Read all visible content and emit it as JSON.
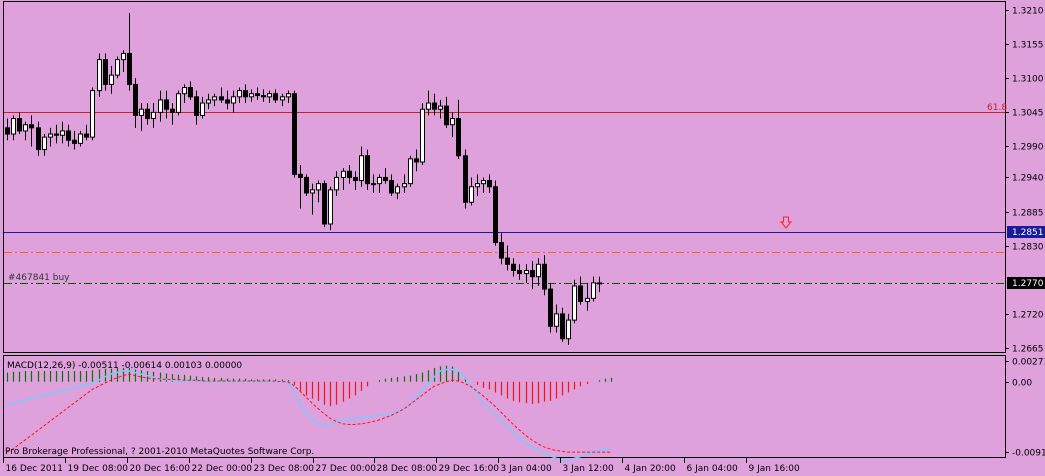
{
  "colors": {
    "background": "#dea1dc",
    "axis": "#000000",
    "level_618": "#cc2020",
    "blue_line": "#1a1a9a",
    "orange_dash": "#ff5a1a",
    "order_line": "#006000",
    "macd_pos": "#007700",
    "macd_neg": "#ff1010",
    "macd_signal": "#ff1010",
    "macd_main": "#7ec8ff",
    "arrow": "#ff2020"
  },
  "price_panel": {
    "label_618": "61.8",
    "order_label": "#467841 buy",
    "blue_level_label": "1.2851",
    "order_level_label": "1.2770",
    "price_ticks": [
      "1.3210",
      "1.3155",
      "1.3100",
      "1.3045",
      "1.2990",
      "1.2940",
      "1.2885",
      "1.2830",
      "1.2720",
      "1.2665"
    ]
  },
  "macd_panel": {
    "title": "MACD(12,26,9) -0.00511 -0.00614 0.00103 0.00000",
    "ticks": [
      "0.00271",
      "0.00",
      "-0.00919"
    ]
  },
  "copyright": "Pro Brokerage Professional, ? 2001-2010 MetaQuotes Software Corp.",
  "time_axis": [
    "16 Dec 2011",
    "19 Dec 08:00",
    "20 Dec 16:00",
    "22 Dec 00:00",
    "23 Dec 08:00",
    "27 Dec 00:00",
    "28 Dec 08:00",
    "29 Dec 16:00",
    "3 Jan 04:00",
    "3 Jan 12:00",
    "4 Jan 20:00",
    "6 Jan 04:00",
    "9 Jan 16:00"
  ],
  "chart_data": {
    "type": "candlestick",
    "symbol_timeframe": "H4",
    "price_range": [
      1.2655,
      1.3225
    ],
    "levels": [
      {
        "label": "61.8",
        "price": 1.3042
      },
      {
        "label": "1.2851",
        "price": 1.2851
      },
      {
        "label": "",
        "price": 1.2818
      },
      {
        "label": "1.2770",
        "price": 1.277
      }
    ],
    "candles": [
      [
        1.302,
        1.3035,
        1.3,
        1.301
      ],
      [
        1.301,
        1.304,
        1.3,
        1.3035
      ],
      [
        1.3035,
        1.3045,
        1.301,
        1.3015
      ],
      [
        1.3015,
        1.303,
        1.3,
        1.3025
      ],
      [
        1.3025,
        1.304,
        1.299,
        1.302
      ],
      [
        1.302,
        1.303,
        1.2975,
        1.2985
      ],
      [
        1.2985,
        1.301,
        1.2975,
        1.3005
      ],
      [
        1.3005,
        1.302,
        1.299,
        1.301
      ],
      [
        1.301,
        1.3025,
        1.2995,
        1.3008
      ],
      [
        1.3008,
        1.303,
        1.2995,
        1.3015
      ],
      [
        1.3015,
        1.3025,
        1.299,
        1.3
      ],
      [
        1.3,
        1.3015,
        1.2985,
        1.2995
      ],
      [
        1.2995,
        1.3015,
        1.299,
        1.301
      ],
      [
        1.301,
        1.3025,
        1.3,
        1.3005
      ],
      [
        1.3005,
        1.3085,
        1.3,
        1.308
      ],
      [
        1.308,
        1.314,
        1.307,
        1.313
      ],
      [
        1.313,
        1.314,
        1.308,
        1.309
      ],
      [
        1.309,
        1.312,
        1.3075,
        1.3105
      ],
      [
        1.3105,
        1.3135,
        1.31,
        1.313
      ],
      [
        1.313,
        1.3145,
        1.311,
        1.314
      ],
      [
        1.314,
        1.3205,
        1.308,
        1.309
      ],
      [
        1.309,
        1.31,
        1.302,
        1.304
      ],
      [
        1.304,
        1.306,
        1.3015,
        1.305
      ],
      [
        1.305,
        1.306,
        1.3025,
        1.3035
      ],
      [
        1.3035,
        1.306,
        1.302,
        1.3045
      ],
      [
        1.3045,
        1.308,
        1.303,
        1.3065
      ],
      [
        1.3065,
        1.308,
        1.3035,
        1.305
      ],
      [
        1.305,
        1.306,
        1.3025,
        1.3045
      ],
      [
        1.3045,
        1.308,
        1.304,
        1.3075
      ],
      [
        1.3075,
        1.309,
        1.306,
        1.3085
      ],
      [
        1.3085,
        1.3095,
        1.3065,
        1.307
      ],
      [
        1.307,
        1.308,
        1.3025,
        1.304
      ],
      [
        1.304,
        1.307,
        1.3035,
        1.306
      ],
      [
        1.306,
        1.3075,
        1.305,
        1.3065
      ],
      [
        1.3065,
        1.3075,
        1.3055,
        1.307
      ],
      [
        1.307,
        1.3085,
        1.306,
        1.3065
      ],
      [
        1.3065,
        1.308,
        1.305,
        1.306
      ],
      [
        1.306,
        1.308,
        1.3045,
        1.307
      ],
      [
        1.307,
        1.3085,
        1.306,
        1.308
      ],
      [
        1.308,
        1.309,
        1.306,
        1.307
      ],
      [
        1.307,
        1.3082,
        1.3062,
        1.3075
      ],
      [
        1.3075,
        1.3085,
        1.3065,
        1.3072
      ],
      [
        1.3072,
        1.3082,
        1.3062,
        1.307
      ],
      [
        1.307,
        1.308,
        1.306,
        1.3075
      ],
      [
        1.3075,
        1.3082,
        1.306,
        1.3065
      ],
      [
        1.3065,
        1.3075,
        1.3055,
        1.307
      ],
      [
        1.307,
        1.308,
        1.306,
        1.3075
      ],
      [
        1.3075,
        1.308,
        1.294,
        1.2945
      ],
      [
        1.2945,
        1.296,
        1.289,
        1.294
      ],
      [
        1.294,
        1.2945,
        1.291,
        1.2915
      ],
      [
        1.2915,
        1.293,
        1.288,
        1.292
      ],
      [
        1.292,
        1.2935,
        1.29,
        1.293
      ],
      [
        1.293,
        1.2935,
        1.286,
        1.2865
      ],
      [
        1.2865,
        1.2925,
        1.2855,
        1.292
      ],
      [
        1.292,
        1.295,
        1.291,
        1.294
      ],
      [
        1.294,
        1.2955,
        1.292,
        1.295
      ],
      [
        1.295,
        1.296,
        1.293,
        1.294
      ],
      [
        1.294,
        1.295,
        1.292,
        1.2935
      ],
      [
        1.2935,
        1.299,
        1.2925,
        1.2975
      ],
      [
        1.2975,
        1.2985,
        1.292,
        1.293
      ],
      [
        1.293,
        1.2945,
        1.2915,
        1.293
      ],
      [
        1.293,
        1.2945,
        1.2915,
        1.294
      ],
      [
        1.294,
        1.2955,
        1.293,
        1.2935
      ],
      [
        1.2935,
        1.2945,
        1.291,
        1.2915
      ],
      [
        1.2915,
        1.293,
        1.2905,
        1.2925
      ],
      [
        1.2925,
        1.2945,
        1.2915,
        1.293
      ],
      [
        1.293,
        1.2975,
        1.2925,
        1.297
      ],
      [
        1.297,
        1.2985,
        1.295,
        1.2965
      ],
      [
        1.2965,
        1.306,
        1.296,
        1.305
      ],
      [
        1.305,
        1.308,
        1.304,
        1.306
      ],
      [
        1.306,
        1.3075,
        1.304,
        1.305
      ],
      [
        1.305,
        1.3065,
        1.3035,
        1.3055
      ],
      [
        1.3055,
        1.307,
        1.302,
        1.3025
      ],
      [
        1.3025,
        1.3045,
        1.3005,
        1.3035
      ],
      [
        1.3035,
        1.3065,
        1.297,
        1.2975
      ],
      [
        1.2975,
        1.2985,
        1.289,
        1.29
      ],
      [
        1.29,
        1.294,
        1.2895,
        1.2925
      ],
      [
        1.2925,
        1.2945,
        1.291,
        1.293
      ],
      [
        1.293,
        1.294,
        1.2915,
        1.2935
      ],
      [
        1.2935,
        1.2945,
        1.2915,
        1.2925
      ],
      [
        1.2925,
        1.2935,
        1.283,
        1.2835
      ],
      [
        1.2835,
        1.285,
        1.28,
        1.281
      ],
      [
        1.281,
        1.283,
        1.279,
        1.28
      ],
      [
        1.28,
        1.281,
        1.278,
        1.279
      ],
      [
        1.279,
        1.28,
        1.2775,
        1.2785
      ],
      [
        1.2785,
        1.28,
        1.277,
        1.279
      ],
      [
        1.279,
        1.2805,
        1.276,
        1.278
      ],
      [
        1.278,
        1.281,
        1.2765,
        1.28
      ],
      [
        1.28,
        1.2815,
        1.275,
        1.276
      ],
      [
        1.276,
        1.277,
        1.269,
        1.27
      ],
      [
        1.27,
        1.2735,
        1.269,
        1.272
      ],
      [
        1.272,
        1.273,
        1.2675,
        1.268
      ],
      [
        1.268,
        1.272,
        1.267,
        1.271
      ],
      [
        1.271,
        1.2775,
        1.2705,
        1.2765
      ],
      [
        1.2765,
        1.278,
        1.2735,
        1.274
      ],
      [
        1.274,
        1.277,
        1.2725,
        1.2745
      ],
      [
        1.2745,
        1.278,
        1.274,
        1.277
      ],
      [
        1.277,
        1.278,
        1.2755,
        1.277
      ]
    ],
    "macd_histogram": [
      0.0012,
      0.0013,
      0.0013,
      0.0014,
      0.0014,
      0.0014,
      0.0014,
      0.0014,
      0.0014,
      0.0014,
      0.0014,
      0.0014,
      0.0014,
      0.0014,
      0.0015,
      0.0016,
      0.0017,
      0.0017,
      0.0018,
      0.0018,
      0.0018,
      0.0016,
      0.0015,
      0.0014,
      0.0013,
      0.0012,
      0.0011,
      0.001,
      0.0009,
      0.0009,
      0.0008,
      0.0007,
      0.0006,
      0.0006,
      0.0005,
      0.0005,
      0.0004,
      0.0004,
      0.0004,
      0.0004,
      0.0003,
      0.0003,
      0.0003,
      0.0003,
      0.0003,
      0.0003,
      0.0002,
      -0.0004,
      -0.0012,
      -0.0018,
      -0.0022,
      -0.0025,
      -0.003,
      -0.0032,
      -0.003,
      -0.0026,
      -0.0022,
      -0.0018,
      -0.0012,
      -0.0006,
      0.0,
      0.0002,
      0.0004,
      0.0005,
      0.0006,
      0.0007,
      0.0008,
      0.001,
      0.0012,
      0.0015,
      0.0018,
      0.002,
      0.0021,
      0.002,
      0.0014,
      0.0006,
      0.0,
      -0.0004,
      -0.0008,
      -0.001,
      -0.0014,
      -0.0018,
      -0.0022,
      -0.0025,
      -0.0027,
      -0.0028,
      -0.0029,
      -0.0028,
      -0.0026,
      -0.0025,
      -0.0022,
      -0.0018,
      -0.0014,
      -0.001,
      -0.0006,
      -0.0003,
      0.0,
      0.0002,
      0.0004,
      0.0005
    ],
    "macd_signal": [
      -0.0092,
      -0.0088,
      -0.0082,
      -0.0076,
      -0.007,
      -0.0064,
      -0.0058,
      -0.0052,
      -0.0046,
      -0.004,
      -0.0034,
      -0.0028,
      -0.0022,
      -0.0016,
      -0.001,
      -0.0006,
      -0.0002,
      0.0002,
      0.0005,
      0.0008,
      0.001,
      0.0008,
      0.0006,
      0.0005,
      0.0004,
      0.0004,
      0.0003,
      0.0003,
      0.0003,
      0.0002,
      0.0002,
      0.0002,
      0.0001,
      0.0001,
      0.0001,
      0.0001,
      0.0001,
      0.0001,
      0.0001,
      0.0001,
      0.0001,
      0.0001,
      0.0001,
      0.0001,
      0.0001,
      0.0,
      0.0,
      -0.0005,
      -0.0012,
      -0.002,
      -0.0028,
      -0.0035,
      -0.0042,
      -0.0048,
      -0.0052,
      -0.0055,
      -0.0056,
      -0.0056,
      -0.0055,
      -0.0054,
      -0.0052,
      -0.005,
      -0.0047,
      -0.0044,
      -0.004,
      -0.0036,
      -0.003,
      -0.0024,
      -0.0018,
      -0.0012,
      -0.0006,
      -0.0003,
      0.0,
      0.0002,
      0.0001,
      -0.0002,
      -0.0006,
      -0.0012,
      -0.0018,
      -0.0025,
      -0.0032,
      -0.004,
      -0.0048,
      -0.0056,
      -0.0063,
      -0.007,
      -0.0076,
      -0.0081,
      -0.0085,
      -0.0088,
      -0.009,
      -0.0091,
      -0.0092,
      -0.0092,
      -0.0092,
      -0.0092,
      -0.0092,
      -0.0092,
      -0.0092,
      -0.0092
    ],
    "macd_main": [
      -0.003,
      -0.0028,
      -0.0026,
      -0.0024,
      -0.0022,
      -0.002,
      -0.0018,
      -0.0016,
      -0.0014,
      -0.0012,
      -0.001,
      -0.0008,
      -0.0006,
      -0.0004,
      -0.0002,
      0.0002,
      0.0006,
      0.001,
      0.0012,
      0.0014,
      0.0014,
      0.0012,
      0.001,
      0.0008,
      0.0006,
      0.0004,
      0.0003,
      0.0002,
      0.0001,
      0.0001,
      0.0001,
      0.0001,
      0.0,
      0.0,
      0.0,
      0.0,
      0.0,
      0.0,
      0.0,
      0.0,
      0.0,
      0.0,
      0.0,
      0.0,
      0.0,
      0.0,
      0.0,
      -0.0012,
      -0.003,
      -0.004,
      -0.0048,
      -0.0055,
      -0.0058,
      -0.0056,
      -0.0052,
      -0.005,
      -0.0049,
      -0.0048,
      -0.0047,
      -0.0046,
      -0.0045,
      -0.0044,
      -0.0043,
      -0.0042,
      -0.004,
      -0.0036,
      -0.003,
      -0.0022,
      -0.0012,
      -0.0002,
      0.0006,
      0.0014,
      0.0016,
      0.0016,
      0.0014,
      0.0006,
      -0.0004,
      -0.0016,
      -0.0026,
      -0.0034,
      -0.0042,
      -0.005,
      -0.0058,
      -0.0066,
      -0.0074,
      -0.008,
      -0.0085,
      -0.0089,
      -0.0093,
      -0.0097,
      -0.01,
      -0.0102,
      -0.0103,
      -0.01,
      -0.0098,
      -0.0095,
      -0.0092,
      -0.009,
      -0.0088,
      -0.0087
    ]
  }
}
